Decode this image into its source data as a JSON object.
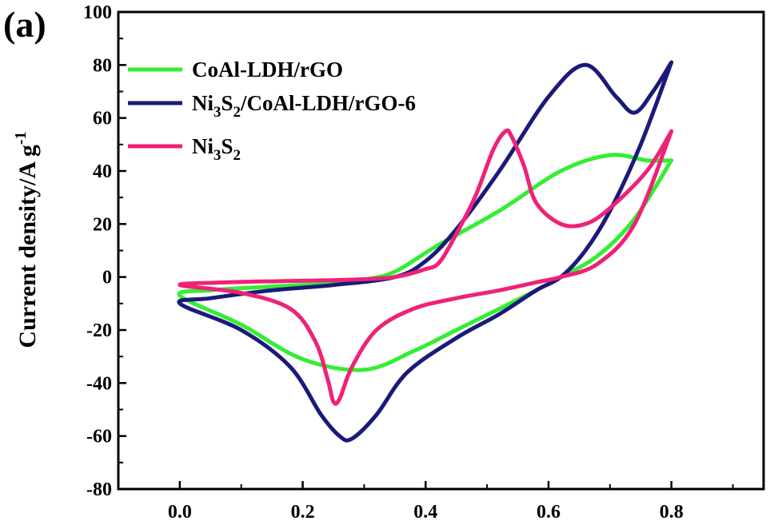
{
  "panel_label": "(a)",
  "chart_data": {
    "type": "line",
    "title": "",
    "xlabel": "",
    "ylabel": "Current density/A g",
    "ylabel_superscript": "-1",
    "xlim": [
      -0.1,
      0.95
    ],
    "ylim": [
      -80,
      100
    ],
    "xticks": [
      "0.0",
      "0.2",
      "0.4",
      "0.6",
      "0.8"
    ],
    "yticks": [
      "-80",
      "-60",
      "-40",
      "-20",
      "0",
      "20",
      "40",
      "60",
      "80",
      "100"
    ],
    "grid": false,
    "legend_position": "top-left",
    "series": [
      {
        "name": "CoAl-LDH/rGO",
        "legend_parts": [
          [
            "CoAl-LDH/rGO",
            "n"
          ]
        ],
        "color": "#33ee33",
        "x": [
          0.8,
          0.76,
          0.7,
          0.62,
          0.52,
          0.42,
          0.35,
          0.3,
          0.26,
          0.2,
          0.12,
          0.05,
          0.0,
          0.1,
          0.2,
          0.3,
          0.38,
          0.45,
          0.52,
          0.58,
          0.62,
          0.68,
          0.74,
          0.8
        ],
        "y": [
          44,
          44,
          46,
          40,
          25,
          12,
          2,
          -1,
          -2.5,
          -3,
          -4,
          -5,
          -7,
          -18,
          -31,
          -35,
          -28,
          -20,
          -12,
          -5,
          0,
          8,
          22,
          44
        ]
      },
      {
        "name": "Ni3S2/CoAl-LDH/rGO-6",
        "legend_parts": [
          [
            "Ni",
            "n"
          ],
          [
            "3",
            "sub"
          ],
          [
            "S",
            "n"
          ],
          [
            "2",
            "sub"
          ],
          [
            "/CoAl-LDH/rGO-6",
            "n"
          ]
        ],
        "color": "#1a1a7a",
        "x": [
          0.8,
          0.77,
          0.74,
          0.71,
          0.66,
          0.6,
          0.52,
          0.45,
          0.4,
          0.35,
          0.25,
          0.15,
          0.05,
          0.0,
          0.1,
          0.18,
          0.23,
          0.26,
          0.28,
          0.32,
          0.37,
          0.45,
          0.52,
          0.58,
          0.62,
          0.66,
          0.7,
          0.75,
          0.8
        ],
        "y": [
          81,
          70,
          62,
          68,
          80,
          68,
          40,
          18,
          6,
          0,
          -3,
          -5,
          -8,
          -10,
          -20,
          -34,
          -52,
          -60,
          -61,
          -52,
          -36,
          -23,
          -14,
          -5,
          0,
          10,
          25,
          50,
          81
        ]
      },
      {
        "name": "Ni3S2",
        "legend_parts": [
          [
            "Ni",
            "n"
          ],
          [
            "3",
            "sub"
          ],
          [
            "S",
            "n"
          ],
          [
            "2",
            "sub"
          ]
        ],
        "color": "#ee2277",
        "x": [
          0.8,
          0.76,
          0.7,
          0.66,
          0.62,
          0.58,
          0.56,
          0.54,
          0.53,
          0.51,
          0.48,
          0.44,
          0.42,
          0.4,
          0.35,
          0.28,
          0.18,
          0.08,
          0.0,
          0.1,
          0.18,
          0.22,
          0.24,
          0.25,
          0.26,
          0.28,
          0.32,
          0.38,
          0.45,
          0.52,
          0.58,
          0.62,
          0.68,
          0.74,
          0.8
        ],
        "y": [
          55,
          40,
          26,
          20,
          20,
          28,
          42,
          53,
          55,
          48,
          30,
          12,
          5,
          3,
          0,
          -1,
          -1.5,
          -2,
          -3,
          -6,
          -12,
          -24,
          -38,
          -47,
          -46,
          -34,
          -20,
          -12,
          -8,
          -5,
          -2,
          0,
          5,
          20,
          55
        ]
      }
    ]
  }
}
